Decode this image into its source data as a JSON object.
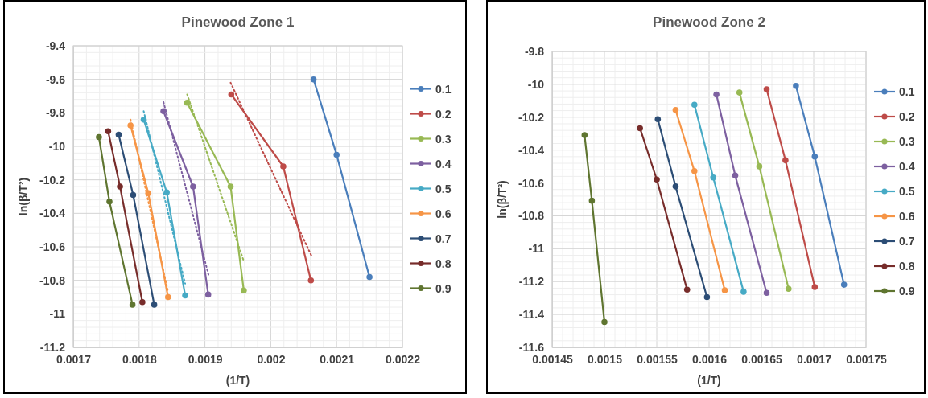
{
  "chart_data": [
    {
      "type": "line",
      "title": "Pinewood Zone 1",
      "xlabel": "(1/T)",
      "ylabel": "ln(β/T²)",
      "xlim": [
        0.0017,
        0.0022
      ],
      "xticks": [
        0.0017,
        0.0018,
        0.0019,
        0.002,
        0.0021,
        0.0022
      ],
      "ylim": [
        -11.2,
        -9.4
      ],
      "yticks": [
        -11.2,
        -11,
        -10.8,
        -10.6,
        -10.4,
        -10.2,
        -10,
        -9.8,
        -9.6,
        -9.4
      ],
      "grid": true,
      "legend": "right",
      "marker": "circle",
      "line_style": "solid",
      "series": [
        {
          "name": "0.1",
          "color": "#4a7ebb",
          "x": [
            0.002065,
            0.0021,
            0.00215
          ],
          "values": [
            -9.6,
            -10.05,
            -10.78
          ]
        },
        {
          "name": "0.2",
          "color": "#be4b48",
          "x": [
            0.00194,
            0.002019,
            0.002061
          ],
          "values": [
            -9.69,
            -10.12,
            -10.8
          ]
        },
        {
          "name": "0.3",
          "color": "#98b954",
          "x": [
            0.001873,
            0.001939,
            0.001959
          ],
          "values": [
            -9.74,
            -10.24,
            -10.86
          ]
        },
        {
          "name": "0.4",
          "color": "#7d60a0",
          "x": [
            0.001837,
            0.001882,
            0.001905
          ],
          "values": [
            -9.79,
            -10.24,
            -10.885
          ]
        },
        {
          "name": "0.5",
          "color": "#46aac5",
          "x": [
            0.001807,
            0.001842,
            0.00187
          ],
          "values": [
            -9.84,
            -10.275,
            -10.89
          ]
        },
        {
          "name": "0.6",
          "color": "#f69546",
          "x": [
            0.001787,
            0.001814,
            0.001844
          ],
          "values": [
            -9.875,
            -10.28,
            -10.9
          ]
        },
        {
          "name": "0.7",
          "color": "#2c4d75",
          "x": [
            0.001769,
            0.001791,
            0.001823
          ],
          "values": [
            -9.93,
            -10.29,
            -10.945
          ]
        },
        {
          "name": "0.8",
          "color": "#772c2a",
          "x": [
            0.001753,
            0.001771,
            0.001805
          ],
          "values": [
            -9.91,
            -10.24,
            -10.93
          ]
        },
        {
          "name": "0.9",
          "color": "#5f7530",
          "x": [
            0.001739,
            0.001755,
            0.00179
          ],
          "values": [
            -9.945,
            -10.33,
            -10.945
          ]
        },
        {
          "type": "line",
          "line_style": "dotted",
          "marker": "none",
          "color": "#be4b48",
          "x": [
            0.001939,
            0.002062
          ],
          "values": [
            -9.62,
            -10.655
          ]
        },
        {
          "type": "line",
          "line_style": "dotted",
          "marker": "none",
          "color": "#98b954",
          "x": [
            0.001873,
            0.001959
          ],
          "values": [
            -9.69,
            -10.685
          ]
        },
        {
          "type": "line",
          "line_style": "dotted",
          "marker": "none",
          "color": "#7d60a0",
          "x": [
            0.001837,
            0.001906
          ],
          "values": [
            -9.735,
            -10.775
          ]
        },
        {
          "type": "line",
          "line_style": "dotted",
          "marker": "none",
          "color": "#46aac5",
          "x": [
            0.001807,
            0.00187
          ],
          "values": [
            -9.79,
            -10.82
          ]
        },
        {
          "type": "line",
          "line_style": "dotted",
          "marker": "none",
          "color": "#f69546",
          "x": [
            0.001787,
            0.001844
          ],
          "values": [
            -9.84,
            -10.87
          ]
        }
      ]
    },
    {
      "type": "line",
      "title": "Pinewood Zone 2",
      "xlabel": "(1/T)",
      "ylabel": "ln(β/T²)",
      "xlim": [
        0.00145,
        0.00175
      ],
      "xticks": [
        0.00145,
        0.0015,
        0.00155,
        0.0016,
        0.00165,
        0.0017,
        0.00175
      ],
      "ylim": [
        -11.6,
        -9.8
      ],
      "yticks": [
        -11.6,
        -11.4,
        -11.2,
        -11,
        -10.8,
        -10.6,
        -10.4,
        -10.2,
        -10,
        -9.8
      ],
      "grid": true,
      "legend": "right",
      "marker": "circle",
      "line_style": "solid",
      "series": [
        {
          "name": "0.1",
          "color": "#4a7ebb",
          "x": [
            0.001683,
            0.001701,
            0.001729
          ],
          "values": [
            -10.009,
            -10.439,
            -11.219
          ]
        },
        {
          "name": "0.2",
          "color": "#be4b48",
          "x": [
            0.001655,
            0.001673,
            0.001701
          ],
          "values": [
            -10.03,
            -10.462,
            -11.233
          ]
        },
        {
          "name": "0.3",
          "color": "#98b954",
          "x": [
            0.001629,
            0.001648,
            0.001676
          ],
          "values": [
            -10.05,
            -10.499,
            -11.244
          ]
        },
        {
          "name": "0.4",
          "color": "#7d60a0",
          "x": [
            0.001607,
            0.001625,
            0.001655
          ],
          "values": [
            -10.062,
            -10.555,
            -11.269
          ]
        },
        {
          "name": "0.5",
          "color": "#46aac5",
          "x": [
            0.001586,
            0.001604,
            0.001633
          ],
          "values": [
            -10.124,
            -10.567,
            -11.262
          ]
        },
        {
          "name": "0.6",
          "color": "#f69546",
          "x": [
            0.001568,
            0.001586,
            0.001615
          ],
          "values": [
            -10.156,
            -10.528,
            -11.253
          ]
        },
        {
          "name": "0.7",
          "color": "#2c4d75",
          "x": [
            0.001551,
            0.001568,
            0.001598
          ],
          "values": [
            -10.212,
            -10.621,
            -11.294
          ]
        },
        {
          "name": "0.8",
          "color": "#772c2a",
          "x": [
            0.001534,
            0.00155,
            0.001579
          ],
          "values": [
            -10.267,
            -10.579,
            -11.249
          ]
        },
        {
          "name": "0.9",
          "color": "#5f7530",
          "x": [
            0.001481,
            0.001488,
            0.0015
          ],
          "values": [
            -10.309,
            -10.708,
            -11.446
          ]
        }
      ]
    }
  ]
}
